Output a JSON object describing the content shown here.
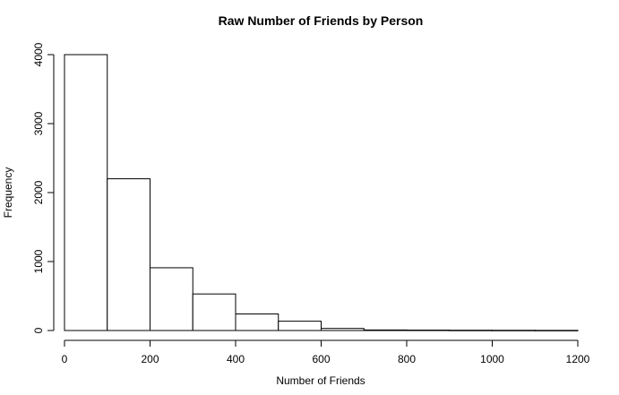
{
  "chart_data": {
    "type": "bar",
    "title": "Raw Number of Friends by Person",
    "xlabel": "Number of Friends",
    "ylabel": "Frequency",
    "bins": [
      {
        "start": 0,
        "end": 100,
        "value": 4000
      },
      {
        "start": 100,
        "end": 200,
        "value": 2200
      },
      {
        "start": 200,
        "end": 300,
        "value": 910
      },
      {
        "start": 300,
        "end": 400,
        "value": 530
      },
      {
        "start": 400,
        "end": 500,
        "value": 240
      },
      {
        "start": 500,
        "end": 600,
        "value": 135
      },
      {
        "start": 600,
        "end": 700,
        "value": 30
      },
      {
        "start": 700,
        "end": 800,
        "value": 8
      },
      {
        "start": 800,
        "end": 900,
        "value": 6
      },
      {
        "start": 900,
        "end": 1000,
        "value": 4
      },
      {
        "start": 1000,
        "end": 1100,
        "value": 3
      },
      {
        "start": 1100,
        "end": 1200,
        "value": 2
      }
    ],
    "xlim": [
      0,
      1200
    ],
    "ylim": [
      0,
      4000
    ],
    "xticks": [
      "0",
      "200",
      "400",
      "600",
      "800",
      "1000",
      "1200"
    ],
    "yticks": [
      "0",
      "1000",
      "2000",
      "3000",
      "4000"
    ],
    "grid": false,
    "legend": "none"
  }
}
